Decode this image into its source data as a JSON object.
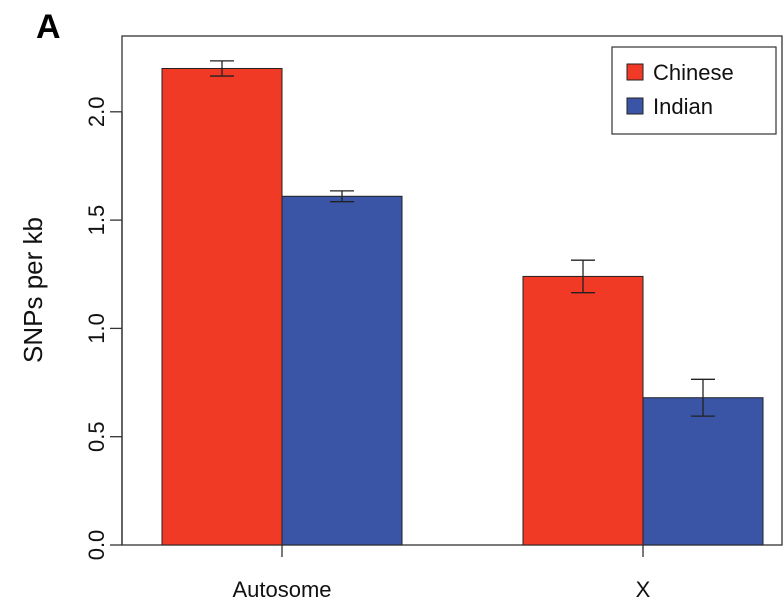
{
  "panel_label": "A",
  "colors": {
    "chinese": "#f03a26",
    "indian": "#3a55a6",
    "axis": "#333333",
    "errorbar": "#222222"
  },
  "chart_data": {
    "type": "bar",
    "categories": [
      "Autosome",
      "X"
    ],
    "series": [
      {
        "name": "Chinese",
        "values": [
          2.2,
          1.24
        ],
        "error": [
          0.035,
          0.075
        ]
      },
      {
        "name": "Indian",
        "values": [
          1.61,
          0.68
        ],
        "error": [
          0.025,
          0.085
        ]
      }
    ],
    "ylabel": "SNPs per kb",
    "ylim": [
      0,
      2.35
    ],
    "yticks": [
      0.0,
      0.5,
      1.0,
      1.5,
      2.0
    ],
    "ytick_labels": [
      "0.0",
      "0.5",
      "1.0",
      "1.5",
      "2.0"
    ],
    "legend_position": "top-right",
    "grid": false
  }
}
